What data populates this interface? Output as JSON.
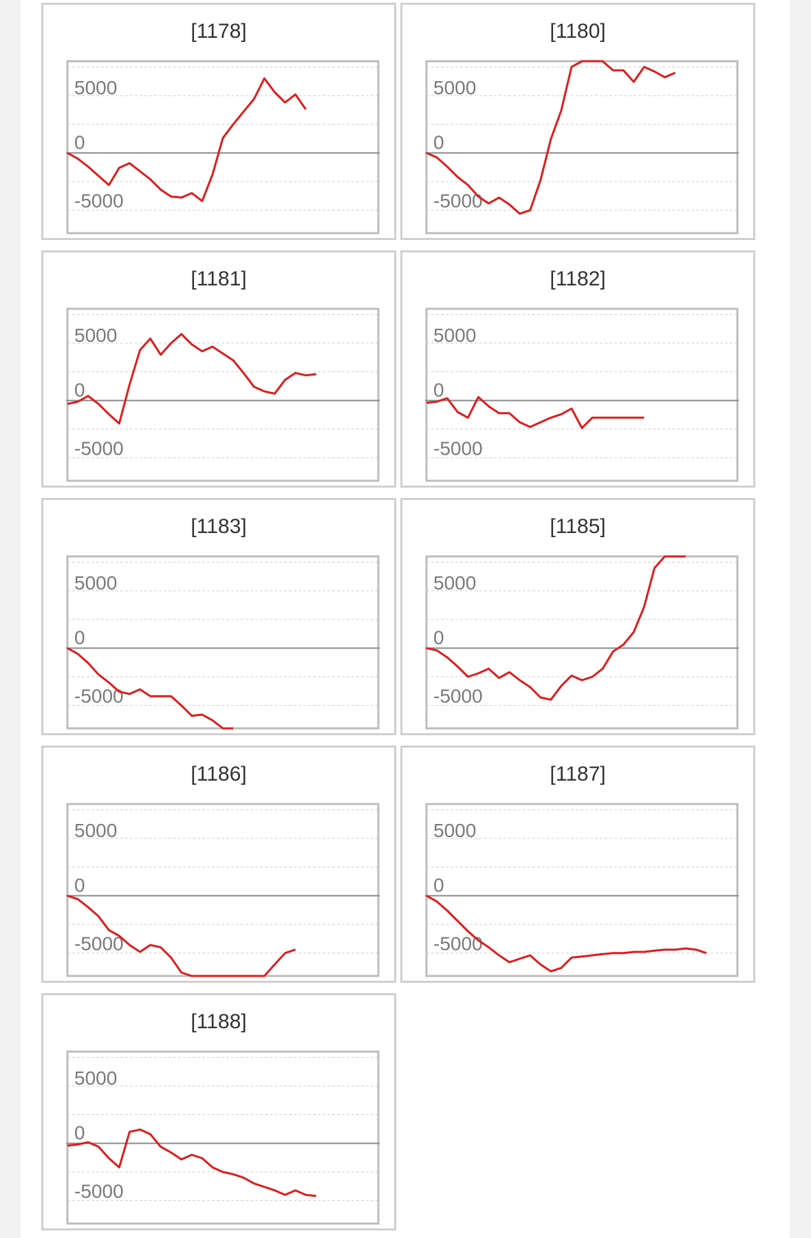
{
  "colors": {
    "line": "#e01b1b",
    "zero_line": "#8a8a8a",
    "grid": "#cfcfcf",
    "frame": "#bdbdbd",
    "tick_text": "#7a7a7a",
    "title_text": "#333333"
  },
  "chart_data": [
    {
      "type": "line",
      "title": "[1178]",
      "ylim": [
        -7000,
        8000
      ],
      "ytick_labels": [
        "5000",
        "0",
        "-5000"
      ],
      "x": [
        0,
        1,
        2,
        3,
        4,
        5,
        6,
        7,
        8,
        9,
        10,
        11,
        12,
        13,
        14,
        15,
        16,
        17,
        18,
        19,
        20,
        21,
        22,
        23
      ],
      "values": [
        0,
        -500,
        -1200,
        -2000,
        -2800,
        -1300,
        -900,
        -1600,
        -2300,
        -3200,
        -3800,
        -3900,
        -3500,
        -4200,
        -1900,
        1300,
        2500,
        3600,
        4700,
        6500,
        5300,
        4400,
        5100,
        3800
      ]
    },
    {
      "type": "line",
      "title": "[1180]",
      "ylim": [
        -7000,
        8000
      ],
      "ytick_labels": [
        "5000",
        "0",
        "-5000"
      ],
      "x": [
        0,
        1,
        2,
        3,
        4,
        5,
        6,
        7,
        8,
        9,
        10,
        11,
        12,
        13,
        14,
        15,
        16,
        17,
        18,
        19,
        20,
        21,
        22,
        23,
        24
      ],
      "values": [
        0,
        -400,
        -1200,
        -2100,
        -2800,
        -3800,
        -4400,
        -3900,
        -4500,
        -5300,
        -5000,
        -2400,
        1200,
        3700,
        7500,
        8000,
        8000,
        8000,
        7200,
        7200,
        6200,
        7500,
        7100,
        6600,
        7000
      ]
    },
    {
      "type": "line",
      "title": "[1181]",
      "ylim": [
        -7000,
        8000
      ],
      "ytick_labels": [
        "5000",
        "0",
        "-5000"
      ],
      "x": [
        0,
        1,
        2,
        3,
        4,
        5,
        6,
        7,
        8,
        9,
        10,
        11,
        12,
        13,
        14,
        15,
        16,
        17,
        18,
        19,
        20,
        21,
        22,
        23,
        24
      ],
      "values": [
        -300,
        -100,
        400,
        -300,
        -1200,
        -2000,
        1400,
        4400,
        5400,
        4000,
        5000,
        5800,
        4900,
        4300,
        4700,
        4100,
        3500,
        2400,
        1200,
        800,
        600,
        1800,
        2400,
        2200,
        2300
      ]
    },
    {
      "type": "line",
      "title": "[1182]",
      "ylim": [
        -7000,
        8000
      ],
      "ytick_labels": [
        "5000",
        "0",
        "-5000"
      ],
      "x": [
        0,
        1,
        2,
        3,
        4,
        5,
        6,
        7,
        8,
        9,
        10,
        11,
        12,
        13,
        14,
        15,
        16,
        17,
        18,
        19,
        20,
        21
      ],
      "values": [
        -200,
        -100,
        200,
        -1000,
        -1500,
        300,
        -500,
        -1100,
        -1100,
        -1900,
        -2300,
        -1900,
        -1500,
        -1200,
        -700,
        -2400,
        -1500,
        -1500,
        -1500,
        -1500,
        -1500,
        -1500
      ]
    },
    {
      "type": "line",
      "title": "[1183]",
      "ylim": [
        -7000,
        8000
      ],
      "ytick_labels": [
        "5000",
        "0",
        "-5000"
      ],
      "x": [
        0,
        1,
        2,
        3,
        4,
        5,
        6,
        7,
        8,
        9,
        10,
        11,
        12,
        13,
        14,
        15,
        16
      ],
      "values": [
        0,
        -500,
        -1300,
        -2300,
        -3000,
        -3800,
        -4000,
        -3600,
        -4200,
        -4200,
        -4200,
        -5000,
        -5900,
        -5800,
        -6300,
        -7000,
        -7200
      ]
    },
    {
      "type": "line",
      "title": "[1185]",
      "ylim": [
        -7000,
        8000
      ],
      "ytick_labels": [
        "5000",
        "0",
        "-5000"
      ],
      "x": [
        0,
        1,
        2,
        3,
        4,
        5,
        6,
        7,
        8,
        9,
        10,
        11,
        12,
        13,
        14,
        15,
        16,
        17,
        18,
        19,
        20,
        21,
        22,
        23,
        24,
        25
      ],
      "values": [
        0,
        -200,
        -800,
        -1600,
        -2500,
        -2200,
        -1800,
        -2600,
        -2100,
        -2800,
        -3400,
        -4300,
        -4500,
        -3300,
        -2400,
        -2800,
        -2500,
        -1800,
        -300,
        300,
        1400,
        3600,
        7000,
        8000,
        8000,
        8000
      ]
    },
    {
      "type": "line",
      "title": "[1186]",
      "ylim": [
        -7000,
        8000
      ],
      "ytick_labels": [
        "5000",
        "0",
        "-5000"
      ],
      "x": [
        0,
        1,
        2,
        3,
        4,
        5,
        6,
        7,
        8,
        9,
        10,
        11,
        12,
        13,
        14,
        15,
        16,
        17,
        18,
        19,
        20,
        21,
        22
      ],
      "values": [
        0,
        -300,
        -1000,
        -1800,
        -3000,
        -3500,
        -4300,
        -4900,
        -4300,
        -4500,
        -5400,
        -6700,
        -7100,
        -7500,
        -7500,
        -7500,
        -7500,
        -7500,
        -7500,
        -7400,
        -6000,
        -5000,
        -4700
      ]
    },
    {
      "type": "line",
      "title": "[1187]",
      "ylim": [
        -7000,
        8000
      ],
      "ytick_labels": [
        "5000",
        "0",
        "-5000"
      ],
      "x": [
        0,
        1,
        2,
        3,
        4,
        5,
        6,
        7,
        8,
        9,
        10,
        11,
        12,
        13,
        14,
        15,
        16,
        17,
        18,
        19,
        20,
        21,
        22,
        23,
        24,
        25,
        26,
        27
      ],
      "values": [
        0,
        -500,
        -1300,
        -2200,
        -3100,
        -3900,
        -4500,
        -5200,
        -5800,
        -5500,
        -5200,
        -6000,
        -6600,
        -6300,
        -5400,
        -5300,
        -5200,
        -5100,
        -5000,
        -5000,
        -4900,
        -4900,
        -4800,
        -4700,
        -4700,
        -4600,
        -4700,
        -5000
      ]
    },
    {
      "type": "line",
      "title": "[1188]",
      "ylim": [
        -7000,
        8000
      ],
      "ytick_labels": [
        "5000",
        "0",
        "-5000"
      ],
      "x": [
        0,
        1,
        2,
        3,
        4,
        5,
        6,
        7,
        8,
        9,
        10,
        11,
        12,
        13,
        14,
        15,
        16,
        17,
        18,
        19,
        20,
        21,
        22,
        23,
        24
      ],
      "values": [
        -200,
        -100,
        100,
        -300,
        -1300,
        -2100,
        1000,
        1200,
        800,
        -300,
        -800,
        -1400,
        -1000,
        -1300,
        -2100,
        -2500,
        -2700,
        -3000,
        -3500,
        -3800,
        -4100,
        -4500,
        -4100,
        -4500,
        -4600
      ]
    }
  ]
}
